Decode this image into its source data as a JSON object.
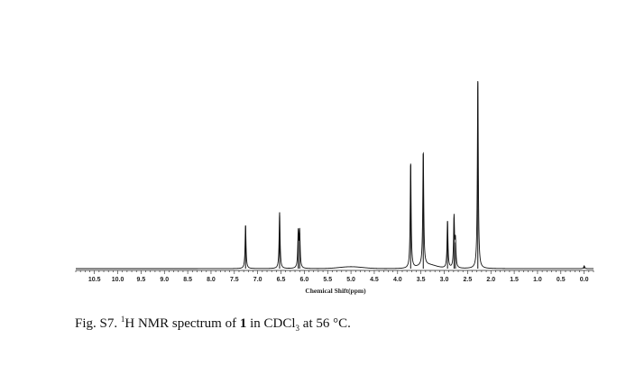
{
  "chart_data": {
    "type": "line",
    "xlabel": "Chemical Shift(ppm)",
    "ylabel": "",
    "xlim": [
      10.9,
      -0.2
    ],
    "x_reversed": true,
    "ylim": [
      0,
      100
    ],
    "xticks": [
      10.5,
      10.0,
      9.5,
      9.0,
      8.5,
      8.0,
      7.5,
      7.0,
      6.5,
      6.0,
      5.5,
      5.0,
      4.5,
      4.0,
      3.5,
      3.0,
      2.5,
      2.0,
      1.5,
      1.0,
      0.5,
      0.0
    ],
    "xtick_labels": [
      "10.5",
      "10.0",
      "9.5",
      "9.0",
      "8.5",
      "8.0",
      "7.5",
      "7.0",
      "6.5",
      "6.0",
      "5.5",
      "5.0",
      "4.5",
      "4.0",
      "3.5",
      "3.0",
      "2.5",
      "2.0",
      "1.5",
      "1.0",
      "0.5",
      "0.0"
    ],
    "grid": false,
    "peaks": [
      {
        "shift": 7.26,
        "intensity": 23
      },
      {
        "shift": 6.53,
        "intensity": 30
      },
      {
        "shift": 6.13,
        "intensity": 19
      },
      {
        "shift": 6.1,
        "intensity": 19
      },
      {
        "shift": 3.72,
        "intensity": 56
      },
      {
        "shift": 3.45,
        "intensity": 61
      },
      {
        "shift": 2.93,
        "intensity": 25
      },
      {
        "shift": 2.79,
        "intensity": 27
      },
      {
        "shift": 2.76,
        "intensity": 14
      },
      {
        "shift": 2.28,
        "intensity": 100
      },
      {
        "shift": 0.0,
        "intensity": 1.5
      }
    ],
    "broad_humps": [
      {
        "shift": 5.0,
        "intensity": 1.0,
        "width": 0.35
      },
      {
        "shift": 3.35,
        "intensity": 2.0,
        "width": 0.25
      }
    ]
  },
  "caption": {
    "prefix": "Fig. S7. ",
    "superscript": "1",
    "part1": "H NMR spectrum of ",
    "compound": "1",
    "part2": " in CDCl",
    "subscript": "3",
    "part3": " at 56 °C."
  }
}
